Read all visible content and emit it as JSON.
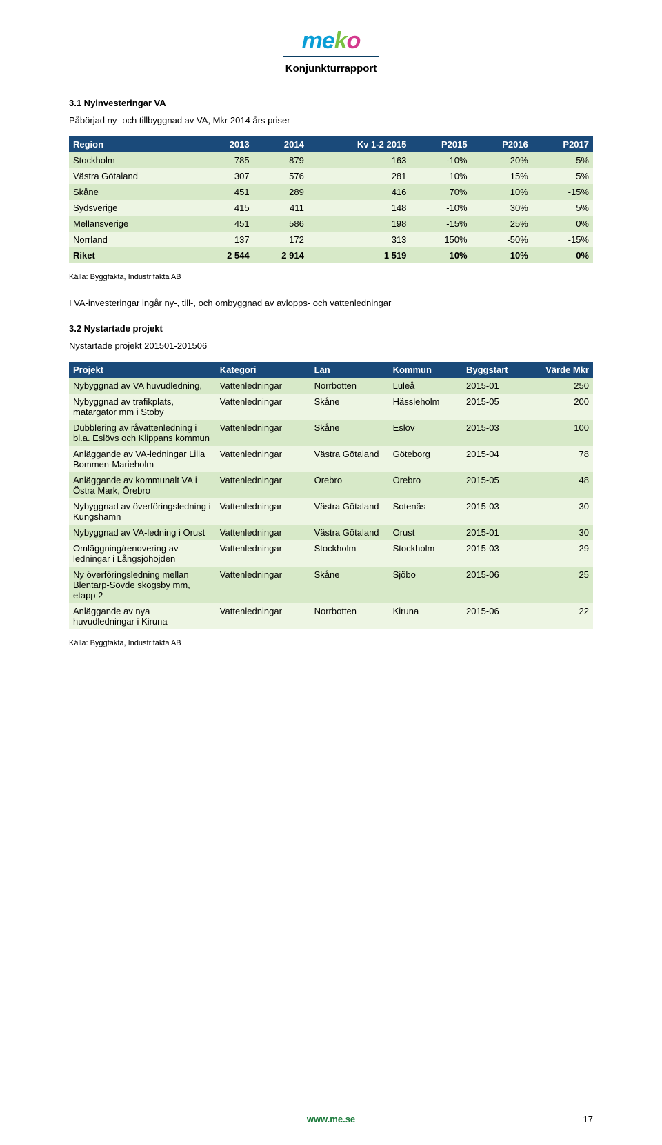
{
  "header": {
    "logo": "meko",
    "subtitle": "Konjunkturrapport"
  },
  "section1": {
    "title": "3.1 Nyinvesteringar VA",
    "caption": "Påbörjad ny- och tillbyggnad av VA, Mkr 2014 års priser"
  },
  "table1": {
    "columns": [
      "Region",
      "2013",
      "2014",
      "Kv 1-2 2015",
      "P2015",
      "P2016",
      "P2017"
    ],
    "rows": [
      [
        "Stockholm",
        "785",
        "879",
        "163",
        "-10%",
        "20%",
        "5%"
      ],
      [
        "Västra Götaland",
        "307",
        "576",
        "281",
        "10%",
        "15%",
        "5%"
      ],
      [
        "Skåne",
        "451",
        "289",
        "416",
        "70%",
        "10%",
        "-15%"
      ],
      [
        "Sydsverige",
        "415",
        "411",
        "148",
        "-10%",
        "30%",
        "5%"
      ],
      [
        "Mellansverige",
        "451",
        "586",
        "198",
        "-15%",
        "25%",
        "0%"
      ],
      [
        "Norrland",
        "137",
        "172",
        "313",
        "150%",
        "-50%",
        "-15%"
      ],
      [
        "Riket",
        "2 544",
        "2 914",
        "1 519",
        "10%",
        "10%",
        "0%"
      ]
    ],
    "header_bg": "#1a4a7a",
    "row_a_bg": "#d7e9c8",
    "row_b_bg": "#edf5e3"
  },
  "source1": "Källa: Byggfakta, Industrifakta AB",
  "note1": "I VA-investeringar ingår ny-, till-, och ombyggnad av avlopps- och vattenledningar",
  "section2": {
    "title": "3.2 Nystartade projekt",
    "caption": "Nystartade projekt 201501-201506"
  },
  "table2": {
    "columns": [
      "Projekt",
      "Kategori",
      "Län",
      "Kommun",
      "Byggstart",
      "Värde Mkr"
    ],
    "rows": [
      [
        "Nybyggnad av VA huvudledning,",
        "Vattenledningar",
        "Norrbotten",
        "Luleå",
        "2015-01",
        "250"
      ],
      [
        "Nybyggnad av trafikplats, matargator mm i Stoby",
        "Vattenledningar",
        "Skåne",
        "Hässleholm",
        "2015-05",
        "200"
      ],
      [
        "Dubblering av råvattenledning i bl.a. Eslövs och Klippans kommun",
        "Vattenledningar",
        "Skåne",
        "Eslöv",
        "2015-03",
        "100"
      ],
      [
        "Anläggande av VA-ledningar Lilla Bommen-Marieholm",
        "Vattenledningar",
        "Västra Götaland",
        "Göteborg",
        "2015-04",
        "78"
      ],
      [
        "Anläggande av kommunalt VA i Östra Mark, Örebro",
        "Vattenledningar",
        "Örebro",
        "Örebro",
        "2015-05",
        "48"
      ],
      [
        "Nybyggnad av överföringsledning i Kungshamn",
        "Vattenledningar",
        "Västra Götaland",
        "Sotenäs",
        "2015-03",
        "30"
      ],
      [
        "Nybyggnad av VA-ledning i Orust",
        "Vattenledningar",
        "Västra Götaland",
        "Orust",
        "2015-01",
        "30"
      ],
      [
        "Omläggning/renovering av ledningar i Långsjöhöjden",
        "Vattenledningar",
        "Stockholm",
        "Stockholm",
        "2015-03",
        "29"
      ],
      [
        "Ny överföringsledning mellan Blentarp-Sövde skogsby mm, etapp 2",
        "Vattenledningar",
        "Skåne",
        "Sjöbo",
        "2015-06",
        "25"
      ],
      [
        "Anläggande av nya huvudledningar i Kiruna",
        "Vattenledningar",
        "Norrbotten",
        "Kiruna",
        "2015-06",
        "22"
      ]
    ],
    "header_bg": "#1a4a7a",
    "row_a_bg": "#d7e9c8",
    "row_b_bg": "#edf5e3"
  },
  "source2": "Källa: Byggfakta, Industrifakta AB",
  "footer": {
    "url": "www.me.se",
    "page": "17"
  }
}
